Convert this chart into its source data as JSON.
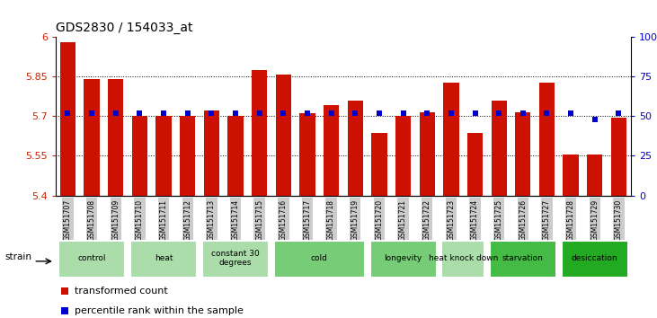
{
  "title": "GDS2830 / 154033_at",
  "samples": [
    "GSM151707",
    "GSM151708",
    "GSM151709",
    "GSM151710",
    "GSM151711",
    "GSM151712",
    "GSM151713",
    "GSM151714",
    "GSM151715",
    "GSM151716",
    "GSM151717",
    "GSM151718",
    "GSM151719",
    "GSM151720",
    "GSM151721",
    "GSM151722",
    "GSM151723",
    "GSM151724",
    "GSM151725",
    "GSM151726",
    "GSM151727",
    "GSM151728",
    "GSM151729",
    "GSM151730"
  ],
  "bar_values": [
    5.98,
    5.84,
    5.84,
    5.7,
    5.7,
    5.7,
    5.72,
    5.7,
    5.875,
    5.855,
    5.71,
    5.74,
    5.76,
    5.635,
    5.7,
    5.715,
    5.825,
    5.635,
    5.76,
    5.715,
    5.825,
    5.555,
    5.555,
    5.695
  ],
  "percentile_values": [
    52,
    52,
    52,
    52,
    52,
    52,
    52,
    52,
    52,
    52,
    52,
    52,
    52,
    52,
    52,
    52,
    52,
    52,
    52,
    52,
    52,
    52,
    48,
    52
  ],
  "groups": [
    {
      "label": "control",
      "start": 0,
      "end": 2,
      "color": "#aaddaa"
    },
    {
      "label": "heat",
      "start": 3,
      "end": 5,
      "color": "#aaddaa"
    },
    {
      "label": "constant 30\ndegrees",
      "start": 6,
      "end": 8,
      "color": "#aaddaa"
    },
    {
      "label": "cold",
      "start": 9,
      "end": 12,
      "color": "#77cc77"
    },
    {
      "label": "longevity",
      "start": 13,
      "end": 15,
      "color": "#77cc77"
    },
    {
      "label": "heat knock down",
      "start": 16,
      "end": 17,
      "color": "#aaddaa"
    },
    {
      "label": "starvation",
      "start": 18,
      "end": 20,
      "color": "#44bb44"
    },
    {
      "label": "desiccation",
      "start": 21,
      "end": 23,
      "color": "#22aa22"
    }
  ],
  "ylim": [
    5.4,
    6.0
  ],
  "y_ticks": [
    5.4,
    5.55,
    5.7,
    5.85,
    6.0
  ],
  "y_tick_labels": [
    "5.4",
    "5.55",
    "5.7",
    "5.85",
    "6"
  ],
  "bar_color": "#cc1100",
  "percentile_color": "#0000cc",
  "background_color": "#ffffff",
  "title_fontsize": 10,
  "axis_label_color_left": "#cc2200",
  "axis_label_color_right": "#0000cc"
}
